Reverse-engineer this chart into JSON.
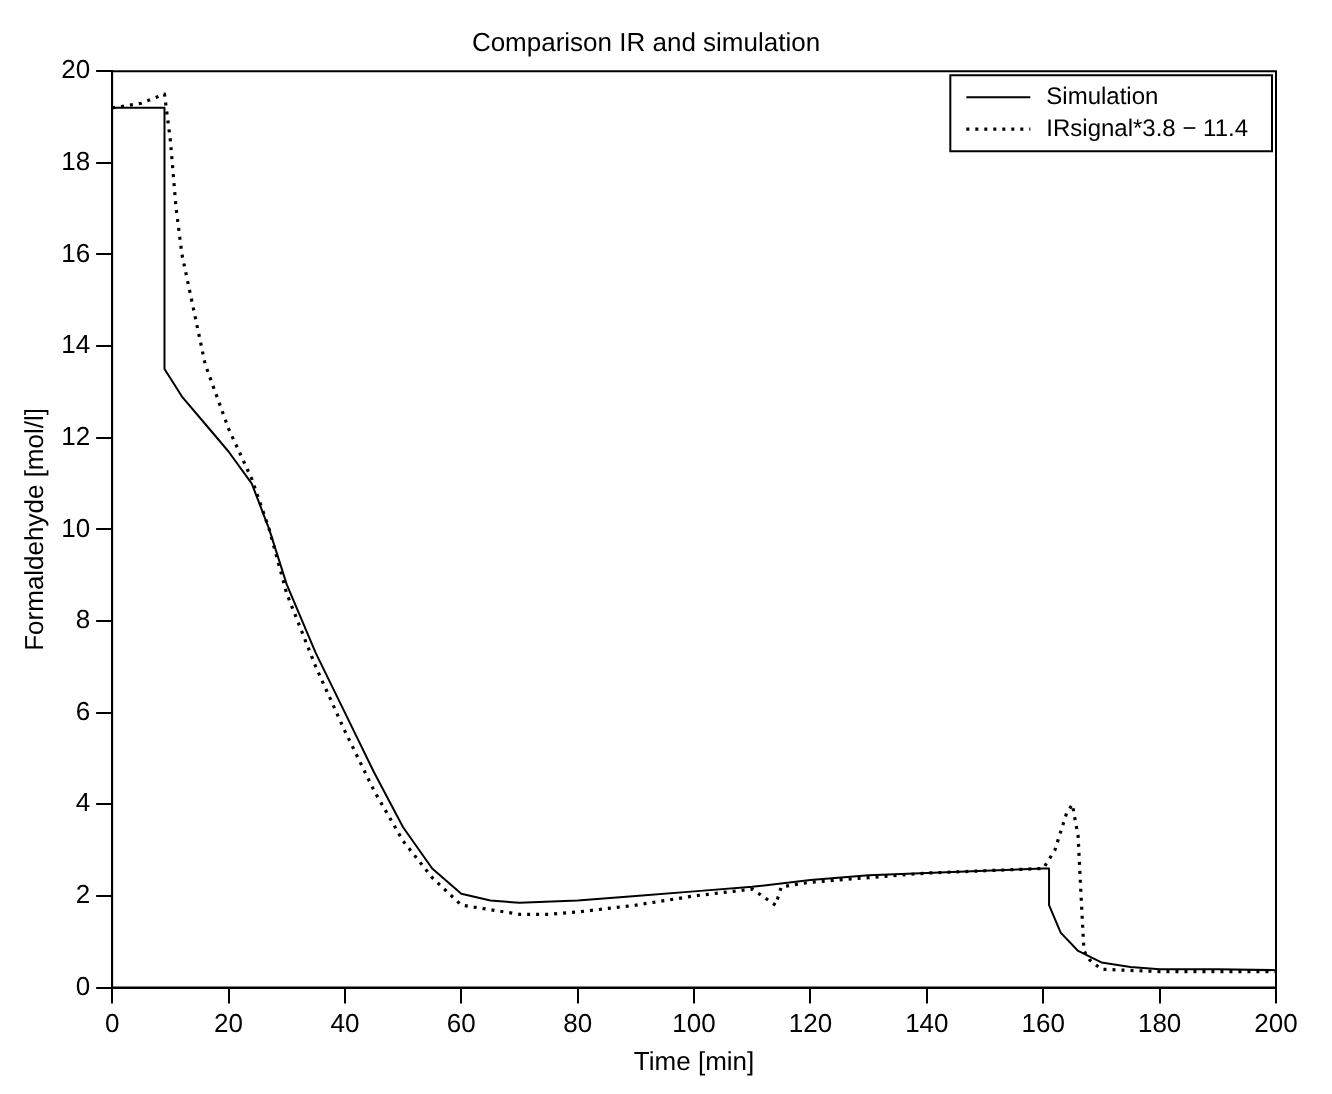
{
  "chart_data": {
    "type": "line",
    "title": "Comparison IR and simulation",
    "xlabel": "Time [min]",
    "ylabel": "Formaldehyde [mol/l]",
    "xlim": [
      0,
      200
    ],
    "xticks": [
      0,
      20,
      40,
      60,
      80,
      100,
      120,
      140,
      160,
      180,
      200
    ],
    "ylim": [
      0,
      20
    ],
    "yticks": [
      0,
      2,
      4,
      6,
      8,
      10,
      12,
      14,
      16,
      18,
      20
    ],
    "grid": false,
    "legend": "top right",
    "series": [
      {
        "name": "Simulation",
        "color": "#000000",
        "line_style": "solid",
        "x": [
          0,
          9,
          9,
          12,
          16,
          20,
          24,
          27,
          30,
          35,
          40,
          45,
          50,
          55,
          60,
          65,
          70,
          80,
          90,
          100,
          110,
          120,
          130,
          140,
          150,
          160,
          161,
          161,
          163,
          166,
          170,
          175,
          180,
          190,
          200
        ],
        "values": [
          19.2,
          19.2,
          13.5,
          12.9,
          12.3,
          11.7,
          11.0,
          10.0,
          8.8,
          7.3,
          6.0,
          4.7,
          3.5,
          2.6,
          2.05,
          1.9,
          1.85,
          1.9,
          2.0,
          2.1,
          2.2,
          2.35,
          2.45,
          2.5,
          2.55,
          2.6,
          2.6,
          1.8,
          1.2,
          0.8,
          0.55,
          0.45,
          0.4,
          0.4,
          0.38
        ]
      },
      {
        "name": "IRsignal*3.8 − 11.4",
        "color": "#000000",
        "line_style": "dotted",
        "x": [
          0,
          5,
          9,
          10,
          11,
          12,
          14,
          16,
          20,
          24,
          27,
          30,
          35,
          40,
          45,
          50,
          55,
          60,
          65,
          70,
          75,
          80,
          90,
          100,
          110,
          114,
          115,
          120,
          130,
          140,
          150,
          160,
          162,
          164,
          165,
          166,
          166.5,
          167,
          168,
          170,
          180,
          190,
          200
        ],
        "values": [
          19.2,
          19.3,
          19.5,
          18.5,
          17,
          16,
          14.8,
          13.6,
          12.2,
          11.1,
          10,
          8.6,
          7.0,
          5.6,
          4.3,
          3.2,
          2.4,
          1.8,
          1.7,
          1.6,
          1.6,
          1.65,
          1.8,
          2.0,
          2.15,
          1.8,
          2.2,
          2.3,
          2.4,
          2.5,
          2.55,
          2.6,
          3.0,
          3.8,
          4.0,
          3.3,
          2.0,
          0.8,
          0.6,
          0.4,
          0.35,
          0.35,
          0.35
        ]
      }
    ]
  }
}
